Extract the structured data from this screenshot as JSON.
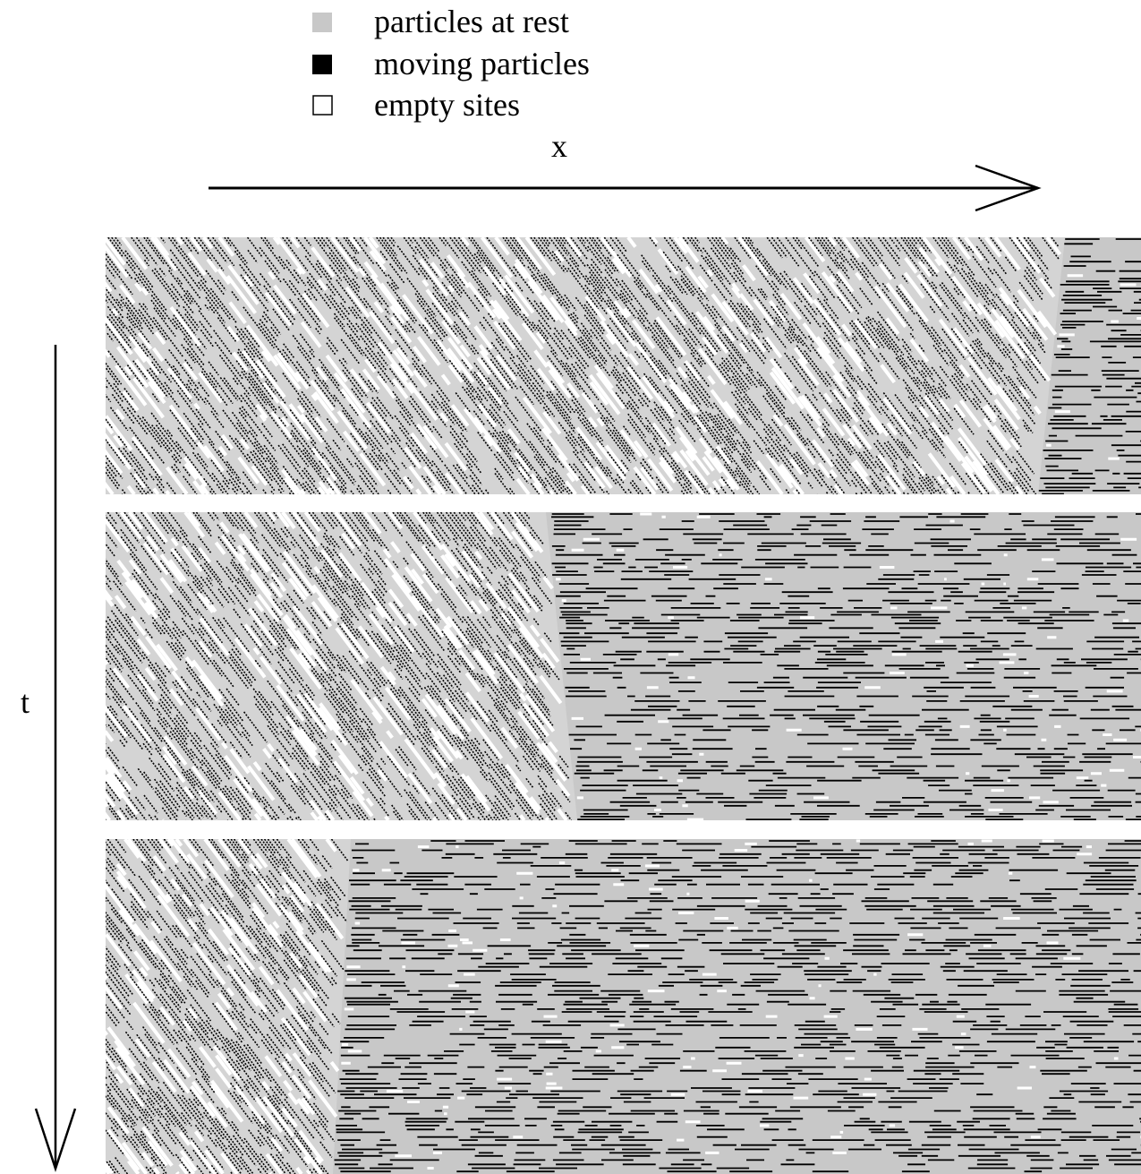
{
  "legend": [
    {
      "label": "particles at rest"
    },
    {
      "label": "moving particles"
    },
    {
      "label": "empty sites"
    }
  ],
  "axes": {
    "x_label": "x",
    "t_label": "t"
  }
}
